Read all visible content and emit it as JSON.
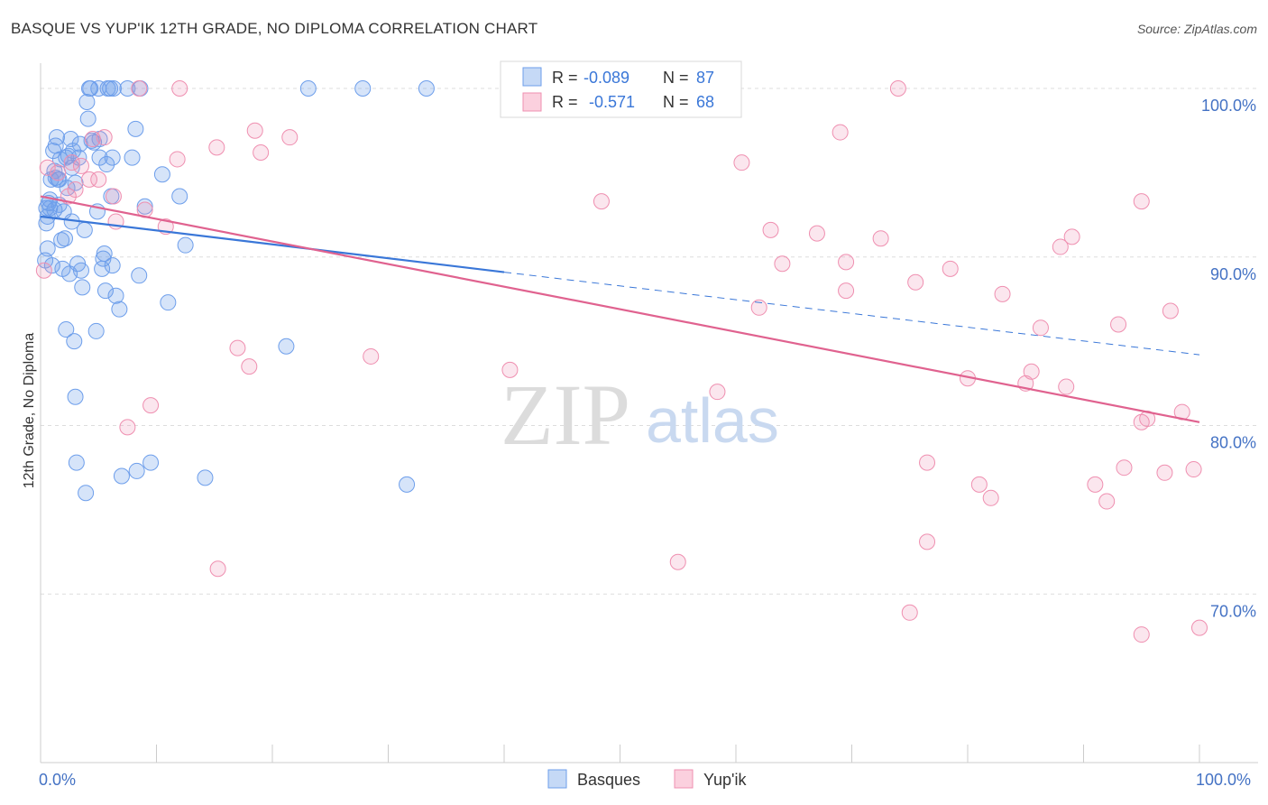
{
  "title": "BASQUE VS YUP'IK 12TH GRADE, NO DIPLOMA CORRELATION CHART",
  "source": "Source: ZipAtlas.com",
  "watermark": {
    "zip": "ZIP",
    "atlas": "atlas"
  },
  "colors": {
    "blue": "#6d9eeb",
    "blue_line": "#3a77d8",
    "pink": "#ef8fb0",
    "pink_line": "#e0628f",
    "axis_label": "#4472c4"
  },
  "chart_data": {
    "type": "scatter",
    "title": "BASQUE VS YUP'IK 12TH GRADE, NO DIPLOMA CORRELATION CHART",
    "xlabel": "",
    "ylabel": "12th Grade, No Diploma",
    "xlim": [
      0,
      100
    ],
    "ylim": [
      60,
      101.5
    ],
    "x_tick_labels": [
      "0.0%",
      "100.0%"
    ],
    "y_ticks": [
      70,
      80,
      90,
      100
    ],
    "y_tick_labels": [
      "70.0%",
      "80.0%",
      "90.0%",
      "100.0%"
    ],
    "legend": [
      {
        "name": "Basques",
        "r_label": "R =",
        "r_value": "-0.089",
        "n_label": "N =",
        "n_value": "87"
      },
      {
        "name": "Yup'ik",
        "r_label": "R =",
        "r_value": "-0.571",
        "n_label": "N =",
        "n_value": "68"
      }
    ],
    "series": [
      {
        "name": "Basques",
        "trend": {
          "x0": 0,
          "y0": 92.4,
          "x1": 40,
          "y1": 89.1,
          "dash_x1": 100,
          "dash_y1": 84.2
        },
        "points": [
          [
            0.4,
            89.8
          ],
          [
            0.5,
            92.0
          ],
          [
            0.6,
            92.4
          ],
          [
            0.7,
            93.2
          ],
          [
            0.8,
            92.9
          ],
          [
            0.9,
            94.6
          ],
          [
            1.0,
            89.5
          ],
          [
            1.1,
            96.3
          ],
          [
            1.2,
            92.8
          ],
          [
            1.3,
            94.7
          ],
          [
            1.4,
            97.1
          ],
          [
            1.5,
            94.6
          ],
          [
            1.6,
            93.1
          ],
          [
            1.7,
            95.8
          ],
          [
            1.8,
            91.0
          ],
          [
            1.9,
            89.3
          ],
          [
            2.0,
            92.7
          ],
          [
            2.1,
            91.1
          ],
          [
            2.2,
            85.7
          ],
          [
            2.3,
            94.1
          ],
          [
            2.4,
            96.0
          ],
          [
            2.5,
            89.0
          ],
          [
            2.6,
            97.0
          ],
          [
            2.7,
            92.1
          ],
          [
            2.8,
            96.3
          ],
          [
            2.9,
            85.0
          ],
          [
            3.0,
            81.7
          ],
          [
            3.1,
            77.8
          ],
          [
            3.2,
            89.6
          ],
          [
            3.4,
            96.7
          ],
          [
            3.5,
            89.2
          ],
          [
            3.6,
            88.2
          ],
          [
            3.8,
            91.6
          ],
          [
            3.9,
            76.0
          ],
          [
            4.0,
            99.2
          ],
          [
            4.1,
            98.2
          ],
          [
            4.2,
            100.0
          ],
          [
            4.4,
            96.9
          ],
          [
            4.6,
            96.8
          ],
          [
            4.8,
            85.6
          ],
          [
            4.9,
            92.7
          ],
          [
            5.1,
            95.9
          ],
          [
            5.3,
            89.3
          ],
          [
            5.4,
            89.9
          ],
          [
            5.5,
            90.2
          ],
          [
            5.6,
            88.0
          ],
          [
            5.7,
            95.5
          ],
          [
            5.8,
            100.0
          ],
          [
            6.0,
            100.0
          ],
          [
            6.2,
            95.9
          ],
          [
            6.5,
            87.7
          ],
          [
            6.8,
            86.9
          ],
          [
            6.3,
            100.0
          ],
          [
            6.1,
            93.6
          ],
          [
            7.0,
            77.0
          ],
          [
            7.5,
            100.0
          ],
          [
            7.9,
            95.9
          ],
          [
            8.2,
            97.6
          ],
          [
            8.3,
            77.3
          ],
          [
            8.5,
            88.9
          ],
          [
            9.0,
            93.0
          ],
          [
            9.5,
            77.8
          ],
          [
            10.5,
            94.9
          ],
          [
            11.0,
            87.3
          ],
          [
            12.0,
            93.6
          ],
          [
            12.5,
            90.7
          ],
          [
            14.2,
            76.9
          ],
          [
            21.2,
            84.7
          ],
          [
            23.1,
            100.0
          ],
          [
            27.8,
            100.0
          ],
          [
            31.6,
            76.5
          ],
          [
            33.3,
            100.0
          ],
          [
            1.3,
            96.6
          ],
          [
            2.7,
            95.3
          ],
          [
            0.8,
            93.4
          ],
          [
            1.6,
            94.6
          ],
          [
            3.3,
            95.9
          ],
          [
            5.0,
            100.0
          ],
          [
            4.3,
            100.0
          ],
          [
            5.1,
            97.0
          ],
          [
            1.2,
            95.1
          ],
          [
            2.2,
            95.9
          ],
          [
            3.0,
            94.4
          ],
          [
            6.2,
            89.5
          ],
          [
            8.6,
            100.0
          ],
          [
            0.5,
            92.9
          ],
          [
            0.6,
            90.5
          ]
        ]
      },
      {
        "name": "Yup'ik",
        "trend": {
          "x0": 0,
          "y0": 93.6,
          "x1": 100,
          "y1": 80.2
        },
        "points": [
          [
            0.3,
            89.2
          ],
          [
            0.6,
            95.3
          ],
          [
            1.5,
            95.0
          ],
          [
            2.4,
            93.6
          ],
          [
            2.7,
            95.6
          ],
          [
            3.0,
            94.0
          ],
          [
            3.5,
            95.4
          ],
          [
            4.2,
            94.6
          ],
          [
            4.5,
            97.0
          ],
          [
            5.0,
            94.6
          ],
          [
            5.5,
            97.1
          ],
          [
            6.3,
            93.6
          ],
          [
            6.5,
            92.1
          ],
          [
            7.5,
            79.9
          ],
          [
            8.5,
            100.0
          ],
          [
            9.0,
            92.8
          ],
          [
            9.5,
            81.2
          ],
          [
            10.8,
            91.8
          ],
          [
            11.8,
            95.8
          ],
          [
            12.0,
            100.0
          ],
          [
            15.2,
            96.5
          ],
          [
            15.3,
            71.5
          ],
          [
            17.0,
            84.6
          ],
          [
            18.0,
            83.5
          ],
          [
            18.5,
            97.5
          ],
          [
            19.0,
            96.2
          ],
          [
            21.5,
            97.1
          ],
          [
            28.5,
            84.1
          ],
          [
            40.5,
            83.3
          ],
          [
            48.4,
            93.3
          ],
          [
            55.0,
            71.9
          ],
          [
            58.4,
            82.0
          ],
          [
            60.5,
            95.6
          ],
          [
            62.0,
            87.0
          ],
          [
            63.0,
            91.6
          ],
          [
            64.0,
            89.6
          ],
          [
            67.0,
            91.4
          ],
          [
            69.5,
            88.0
          ],
          [
            69.0,
            97.4
          ],
          [
            69.5,
            89.7
          ],
          [
            72.5,
            91.1
          ],
          [
            74.0,
            100.0
          ],
          [
            75.0,
            68.9
          ],
          [
            75.5,
            88.5
          ],
          [
            76.5,
            77.8
          ],
          [
            76.5,
            73.1
          ],
          [
            78.5,
            89.3
          ],
          [
            80.0,
            82.8
          ],
          [
            81.0,
            76.5
          ],
          [
            82.0,
            75.7
          ],
          [
            83.0,
            87.8
          ],
          [
            85.0,
            82.5
          ],
          [
            85.5,
            83.2
          ],
          [
            86.3,
            85.8
          ],
          [
            88.0,
            90.6
          ],
          [
            88.5,
            82.3
          ],
          [
            89.0,
            91.2
          ],
          [
            91.0,
            76.5
          ],
          [
            92.0,
            75.5
          ],
          [
            93.0,
            86.0
          ],
          [
            93.5,
            77.5
          ],
          [
            95.0,
            67.6
          ],
          [
            95.0,
            80.2
          ],
          [
            95.5,
            80.4
          ],
          [
            95.0,
            93.3
          ],
          [
            97.0,
            77.2
          ],
          [
            97.5,
            86.8
          ],
          [
            98.5,
            80.8
          ],
          [
            99.5,
            77.4
          ],
          [
            100.0,
            68.0
          ]
        ]
      }
    ]
  }
}
